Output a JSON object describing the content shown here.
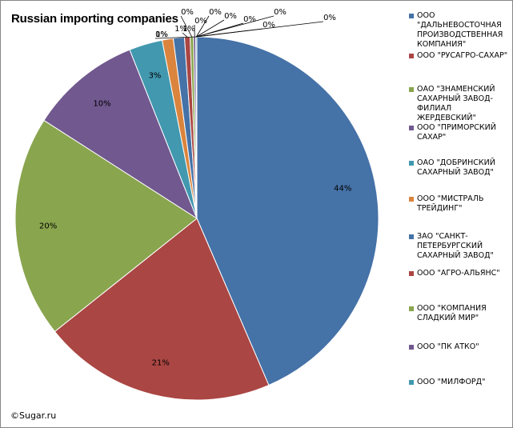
{
  "chart_data": {
    "type": "pie",
    "title": "Russian importing companies",
    "categories": [
      "ООО \"ДАЛЬНЕВОСТОЧНАЯ ПРОИЗВОДСТВЕННАЯ КОМПАНИЯ\"",
      "ООО \"РУСАГРО-САХАР\"",
      "ОАО \"ЗНАМЕНСКИЙ САХАРНЫЙ ЗАВОД-ФИЛИАЛ ЖЕРДЕВСКИЙ\"",
      "ООО \"ПРИМОРСКИЙ САХАР\"",
      "ОАО \"ДОБРИНСКИЙ САХАРНЫЙ ЗАВОД\"",
      "ООО \"МИСТРАЛЬ ТРЕЙДИНГ\"",
      "ЗАО \"САНКТ-ПЕТЕРБУРГСКИЙ САХАРНЫЙ ЗАВОД\"",
      "ООО \"АГРО-АЛЬЯНС\"",
      "ООО \"КОМПАНИЯ СЛАДКИЙ МИР\"",
      "ООО \"ПК АТКО\"",
      "ООО \"МИЛФОРД\""
    ],
    "values": [
      44,
      21,
      20,
      10,
      3,
      1,
      1,
      0.5,
      0.3,
      0.2,
      0.1
    ],
    "value_labels": [
      "44%",
      "21%",
      "20%",
      "10%",
      "3%",
      "1%",
      "1%",
      "1%",
      "0%",
      "0%",
      "0%"
    ],
    "extra_labels": [
      "0%",
      "0%",
      "0%",
      "0%",
      "0%",
      "0%"
    ],
    "colors": [
      "#4572A7",
      "#AA4643",
      "#89A54E",
      "#71588F",
      "#4198AF",
      "#DB843D",
      "#4572A7",
      "#AA4643",
      "#89A54E",
      "#71588F",
      "#4198AF"
    ],
    "legend_position": "right"
  },
  "copyright": "©Sugar.ru"
}
